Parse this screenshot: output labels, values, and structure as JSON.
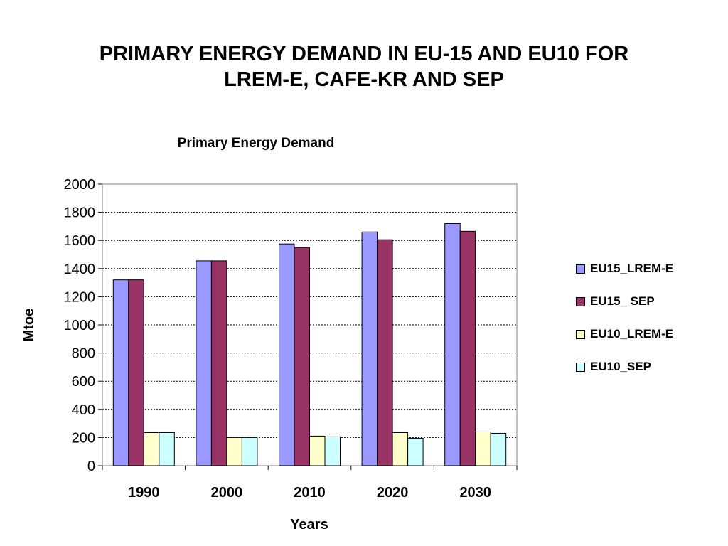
{
  "slide": {
    "title_line1": "PRIMARY ENERGY DEMAND IN EU-15 AND EU10 FOR",
    "title_line2": "LREM-E, CAFE-KR AND SEP"
  },
  "chart_data": {
    "type": "bar",
    "title": "Primary Energy Demand",
    "xlabel": "Years",
    "ylabel": "Mtoe",
    "ylim": [
      0,
      2000
    ],
    "yticks": [
      0,
      200,
      400,
      600,
      800,
      1000,
      1200,
      1400,
      1600,
      1800,
      2000
    ],
    "categories": [
      "1990",
      "2000",
      "2010",
      "2020",
      "2030"
    ],
    "grid": "horizontal dotted",
    "legend_position": "right",
    "series": [
      {
        "name": "EU15_LREM-E",
        "color": "#9999ff",
        "values": [
          1320,
          1455,
          1575,
          1660,
          1720
        ]
      },
      {
        "name": "EU15_ SEP",
        "color": "#993366",
        "values": [
          1320,
          1455,
          1550,
          1605,
          1665
        ]
      },
      {
        "name": "EU10_LREM-E",
        "color": "#ffffcc",
        "values": [
          235,
          200,
          210,
          235,
          240
        ]
      },
      {
        "name": "EU10_SEP",
        "color": "#ccffff",
        "values": [
          235,
          200,
          205,
          195,
          230
        ]
      }
    ]
  }
}
